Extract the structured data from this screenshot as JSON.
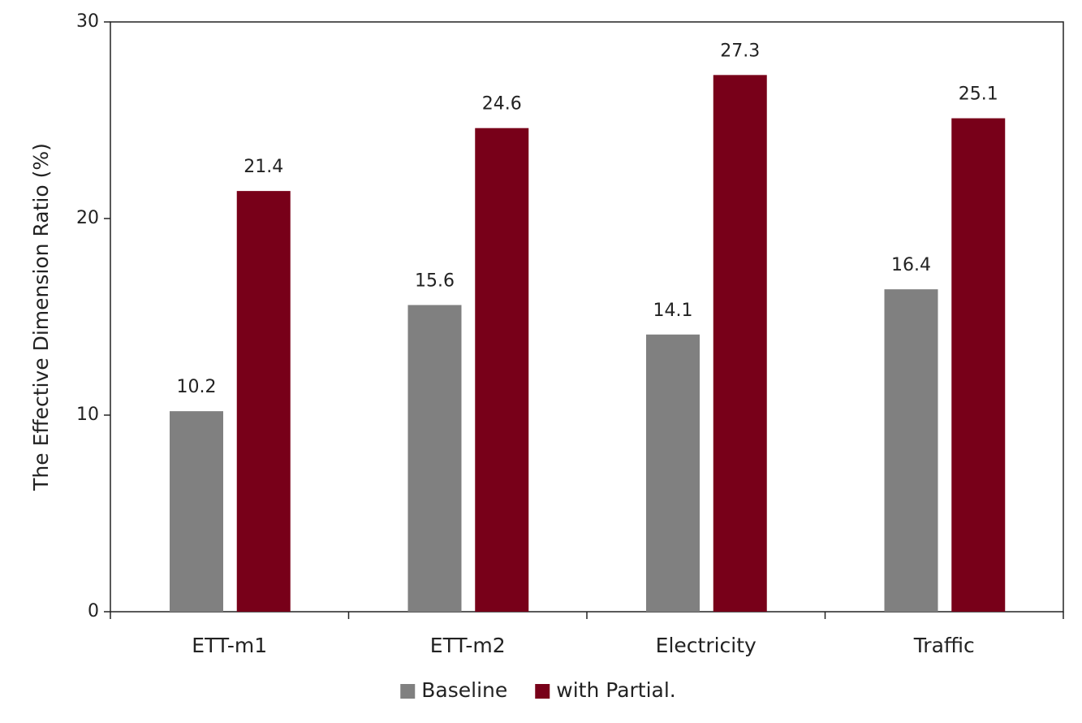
{
  "chart_data": {
    "type": "bar",
    "y_label": "The Effective Dimension Ratio (%)",
    "categories": [
      "ETT-m1",
      "ETT-m2",
      "Electricity",
      "Traffic"
    ],
    "series": [
      {
        "name": "Baseline",
        "color": "#808080",
        "values": [
          10.2,
          15.6,
          14.1,
          16.4
        ]
      },
      {
        "name": "with Partial.",
        "color": "#780019",
        "values": [
          21.4,
          24.6,
          27.3,
          25.1
        ]
      }
    ],
    "ylim": [
      0,
      30
    ],
    "yticks": [
      0,
      10,
      20,
      30
    ],
    "grid": false,
    "legend": "bottom"
  }
}
